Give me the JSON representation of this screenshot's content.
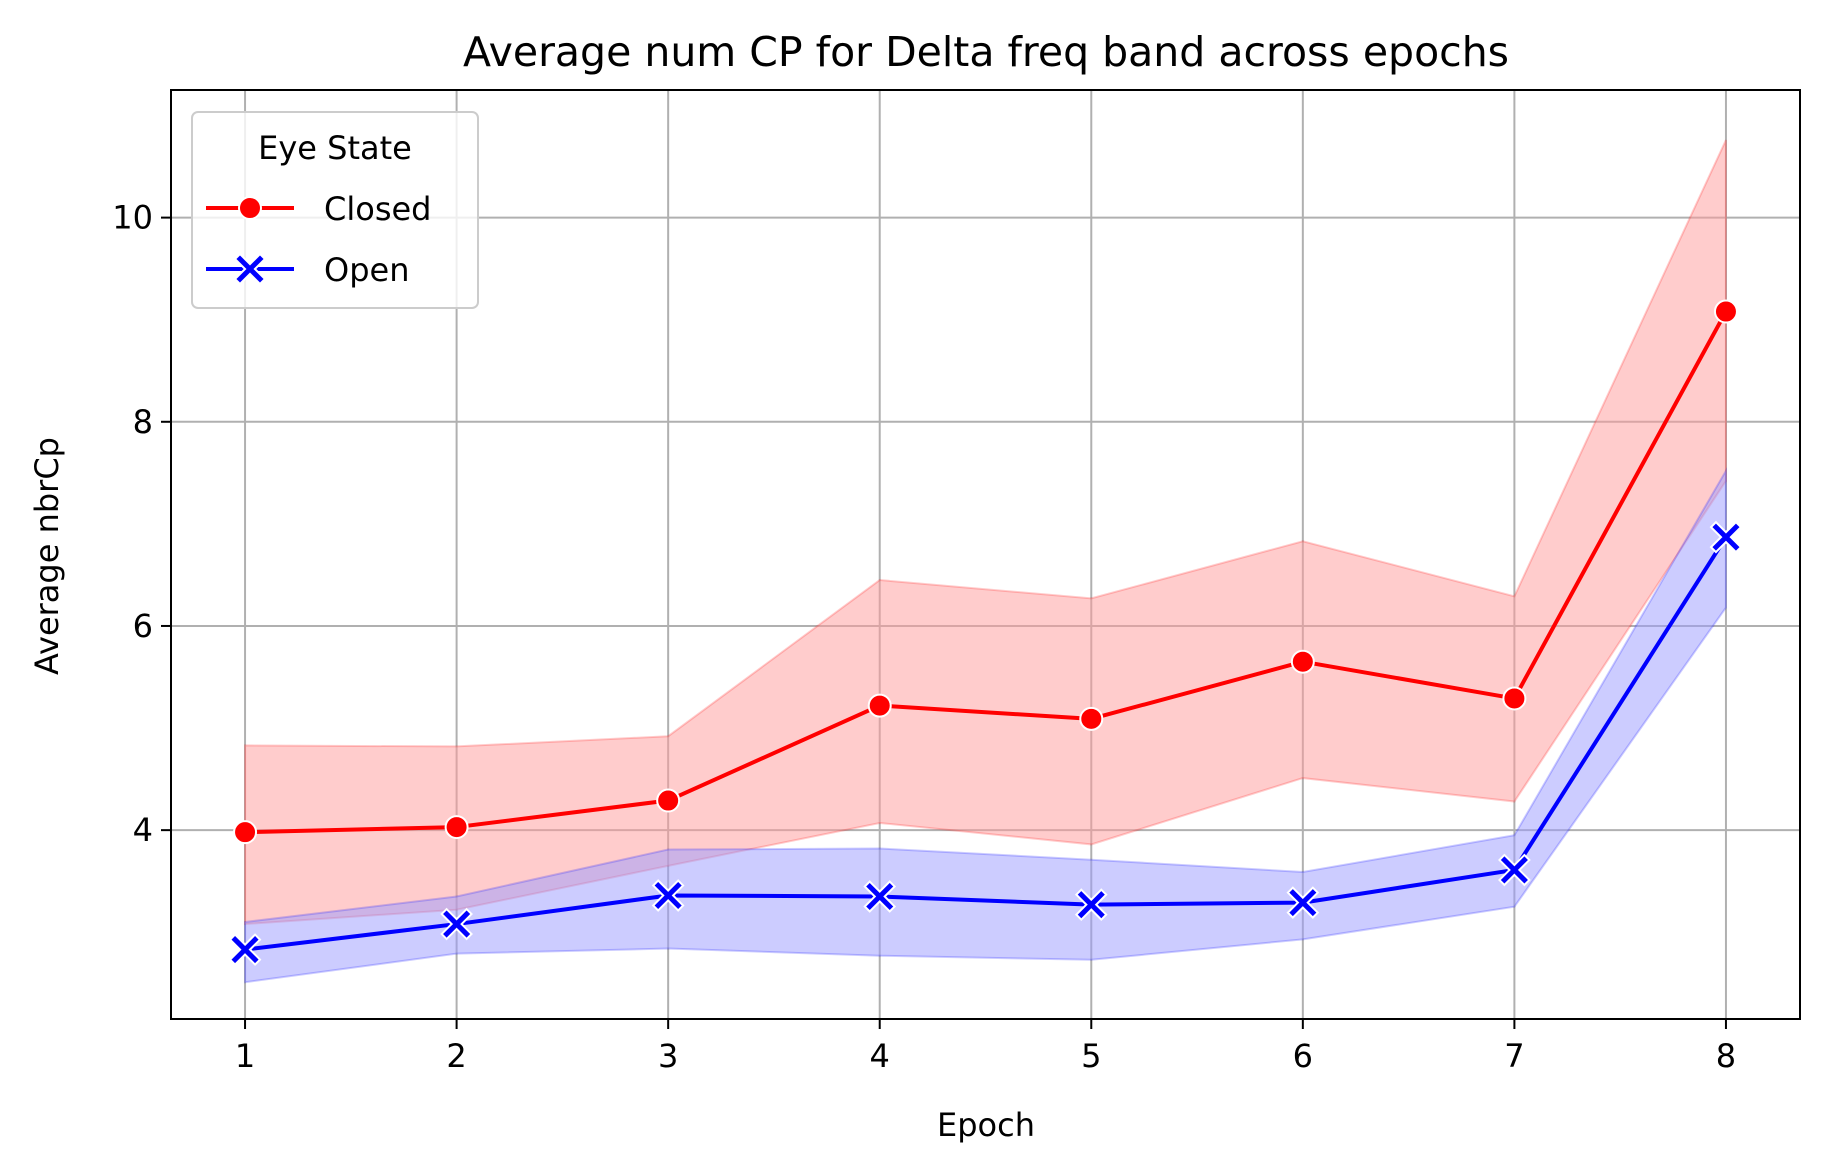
{
  "chart_data": {
    "type": "line",
    "title": "Average num CP for Delta freq band across epochs",
    "xlabel": "Epoch",
    "ylabel": "Average nbrCp",
    "x": [
      1,
      2,
      3,
      4,
      5,
      6,
      7,
      8
    ],
    "xlim": [
      0.65,
      8.35
    ],
    "ylim": [
      2.15,
      11.25
    ],
    "xticks": [
      1,
      2,
      3,
      4,
      5,
      6,
      7,
      8
    ],
    "yticks": [
      4,
      6,
      8,
      10
    ],
    "grid": true,
    "legend": {
      "title": "Eye State",
      "placement": "top-left"
    },
    "series": [
      {
        "name": "Closed",
        "color": "#ff0000",
        "band_color": "#ff9999",
        "marker": "circle",
        "values": [
          3.98,
          4.03,
          4.29,
          5.22,
          5.09,
          5.65,
          5.29,
          9.08
        ],
        "ci_lower": [
          3.08,
          3.22,
          3.65,
          4.07,
          3.86,
          4.51,
          4.28,
          7.42
        ],
        "ci_upper": [
          4.83,
          4.82,
          4.92,
          6.45,
          6.27,
          6.83,
          6.29,
          10.76
        ]
      },
      {
        "name": "Open",
        "color": "#0000ff",
        "band_color": "#9999ff",
        "marker": "x",
        "values": [
          2.83,
          3.08,
          3.36,
          3.35,
          3.27,
          3.29,
          3.61,
          6.87
        ],
        "ci_lower": [
          2.51,
          2.79,
          2.84,
          2.77,
          2.73,
          2.93,
          3.25,
          6.18
        ],
        "ci_upper": [
          3.1,
          3.35,
          3.81,
          3.82,
          3.71,
          3.59,
          3.95,
          7.52
        ]
      }
    ]
  }
}
